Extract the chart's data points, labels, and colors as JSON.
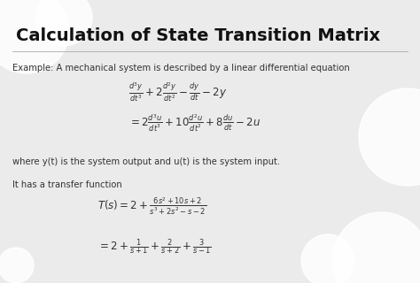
{
  "title": "Calculation of State Transition Matrix",
  "bg_color": "#ebebeb",
  "title_color": "#111111",
  "text_color": "#333333",
  "line1": "Example: A mechanical system is described by a linear differential equation",
  "line2": "where y(t) is the system output and u(t) is the system input.",
  "line3": "It has a transfer function",
  "circle_color": "#ffffff",
  "figsize": [
    4.74,
    3.2
  ],
  "dpi": 100,
  "eq1": "$\\dfrac{d^3 y}{dt^3} + 2\\dfrac{d^2 y}{dt^2} - \\dfrac{dy}{dt} - 2y$",
  "eq2": "$= 2\\dfrac{d^3 u}{dt^3} + 10\\dfrac{d^2 u}{dt^2} + 8\\dfrac{du}{dt} - 2u$",
  "eq3": "$T(s) = 2 + \\dfrac{6s^2 +10s+2}{s^3+2s^2-s-2}$",
  "eq4": "$= 2 + \\dfrac{1}{s+1} + \\dfrac{2}{s+2} + \\dfrac{3}{s-1}$"
}
